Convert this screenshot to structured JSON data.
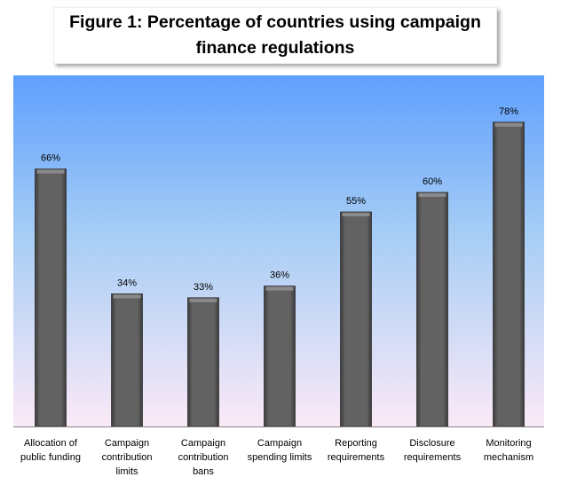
{
  "chart_data": {
    "type": "bar",
    "title": "Figure 1: Percentage of countries using campaign finance regulations",
    "categories": [
      [
        "Allocation of",
        "public funding"
      ],
      [
        "Campaign",
        "contribution",
        "limits"
      ],
      [
        "Campaign",
        "contribution",
        "bans"
      ],
      [
        "Campaign",
        "spending limits"
      ],
      [
        "Reporting",
        "requirements"
      ],
      [
        "Disclosure",
        "requirements"
      ],
      [
        "Monitoring",
        "mechanism"
      ]
    ],
    "values": [
      66,
      34,
      33,
      36,
      55,
      60,
      78
    ],
    "data_labels": [
      "66%",
      "34%",
      "33%",
      "36%",
      "55%",
      "60%",
      "78%"
    ],
    "unit": "%",
    "ylim": [
      0,
      90
    ],
    "grid": false,
    "legend": "none",
    "xlabel": "",
    "ylabel": "",
    "colors": {
      "bar": "#5e5e5e",
      "bg_top": "#5f9ffe",
      "bg_bottom": "#fbe9f7"
    }
  }
}
